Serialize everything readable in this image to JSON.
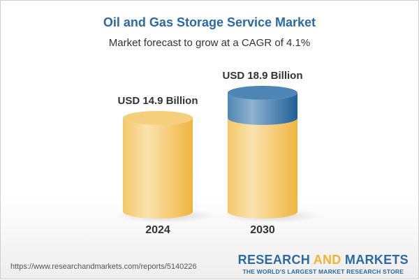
{
  "title": "Oil and Gas Storage Service Market",
  "subtitle": "Market forecast to grow at a CAGR of 4.1%",
  "chart_data": {
    "type": "bar",
    "style": "3d-cylinder",
    "categories": [
      "2024",
      "2030"
    ],
    "values": [
      14.9,
      18.9
    ],
    "data_labels": [
      "USD 14.9 Billion",
      "USD 18.9 Billion"
    ],
    "unit": "USD Billion",
    "cagr": "4.1%",
    "colors": {
      "base": "#f2c15a",
      "growth": "#2f6fa3"
    }
  },
  "footer": {
    "url": "https://www.researchandmarkets.com/reports/5140226",
    "logo_part1": "RESEARCH ",
    "logo_part2": "AND",
    "logo_part3": " MARKETS",
    "tagline": "THE WORLD'S LARGEST MARKET RESEARCH STORE"
  }
}
